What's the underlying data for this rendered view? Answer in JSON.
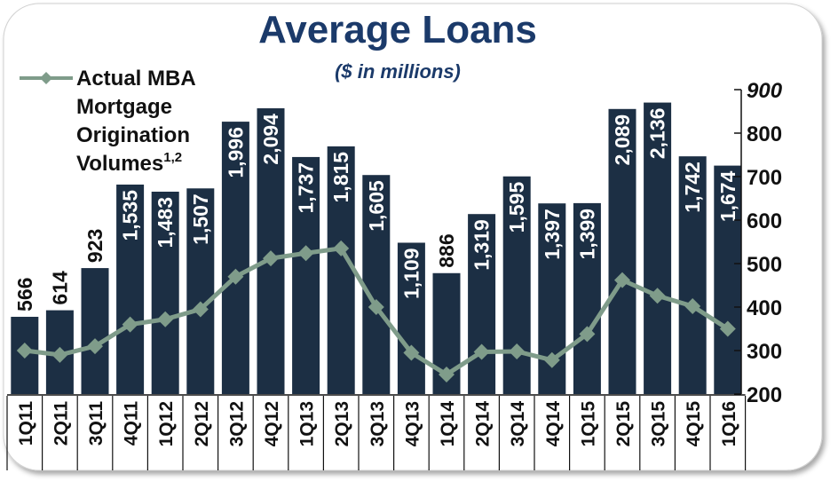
{
  "chart_data": {
    "type": "bar",
    "title": "Average Loans",
    "subtitle": "($ in millions)",
    "categories": [
      "1Q11",
      "2Q11",
      "3Q11",
      "4Q11",
      "1Q12",
      "2Q12",
      "3Q12",
      "4Q12",
      "1Q13",
      "2Q13",
      "3Q13",
      "4Q13",
      "1Q14",
      "2Q14",
      "3Q14",
      "4Q14",
      "1Q15",
      "2Q15",
      "3Q15",
      "4Q15",
      "1Q16"
    ],
    "series": [
      {
        "name": "",
        "type": "bar",
        "values": [
          566,
          614,
          923,
          1535,
          1483,
          1507,
          1996,
          2094,
          1737,
          1815,
          1605,
          1109,
          886,
          1319,
          1595,
          1397,
          1399,
          2089,
          2136,
          1742,
          1674
        ],
        "labels": [
          "566",
          "614",
          "923",
          "1,535",
          "1,483",
          "1,507",
          "1,996",
          "2,094",
          "1,737",
          "1,815",
          "1,605",
          "1,109",
          "886",
          "1,319",
          "1,595",
          "1,397",
          "1,399",
          "2,089",
          "2,136",
          "1,742",
          "1,674"
        ]
      },
      {
        "name": "Actual MBA Mortgage Origination Volumes",
        "name_superscript": "1,2",
        "type": "line",
        "axis": "right",
        "values": [
          300,
          290,
          310,
          360,
          372,
          395,
          470,
          512,
          524,
          535,
          400,
          295,
          245,
          297,
          298,
          278,
          338,
          462,
          426,
          402,
          350
        ]
      }
    ],
    "y_right": {
      "ylim": [
        200,
        900
      ],
      "ticks": [
        "200",
        "300",
        "400",
        "500",
        "600",
        "700",
        "800",
        "900"
      ]
    },
    "legend": "top-left",
    "grid": false,
    "colors": {
      "bar": "#1c2f44",
      "line": "#7f9c8a",
      "title": "#1b3a6a",
      "label_outside": "#111111",
      "label_inside": "#ffffff"
    }
  }
}
